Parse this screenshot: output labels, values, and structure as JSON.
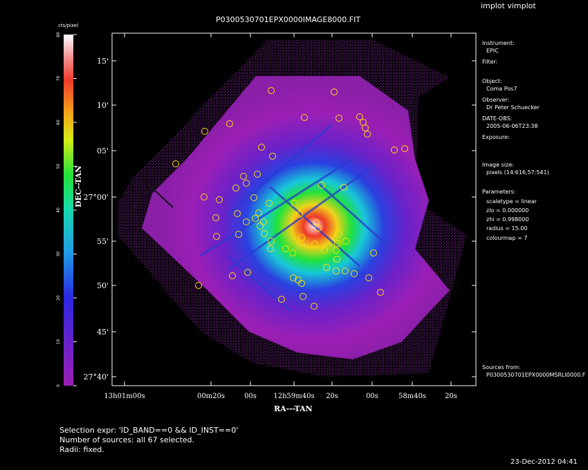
{
  "app_title": "implot vimplot",
  "image": {
    "title": "P0300530701EPX0000IMAGE8000.FIT",
    "xlabel": "RA---TAN",
    "ylabel": "DEC--TAN",
    "dec_ticks": [
      "15'",
      "10'",
      "05'",
      "27°00'",
      "55'",
      "50'",
      "45'",
      "27°40'"
    ],
    "ra_ticks": [
      "13h01m00s",
      "00m20s",
      "00s",
      "12h59m40s",
      "20s",
      "00s",
      "58m40s",
      "20s"
    ],
    "colormap_accent": "#9b1fb5"
  },
  "colorbar": {
    "title": "cts/pixel",
    "ticks": [
      "0",
      "10",
      "20",
      "30",
      "40",
      "50",
      "60",
      "70",
      "80"
    ]
  },
  "info": {
    "instrument_label": "Instrument:",
    "instrument_value": "EPIC",
    "filter_label": "Filter:",
    "object_label": "Object:",
    "object_value": "Coma Pos7",
    "observer_label": "Observer:",
    "observer_value": "Dr Peter Schuecker",
    "date_label": "DATE-OBS:",
    "date_value": "2005-06-06T23:38",
    "exposure_label": "Exposure:",
    "imagesize_label": "Image size:",
    "imagesize_value": "pixels (14:616,57:541)",
    "params_label": "Parameters:",
    "param_scaletype": "scaletype = linear",
    "param_zlo": "zlo = 0.000000",
    "param_zhi": "zhi = 0.998000",
    "param_radius": "radius = 15.00",
    "param_colourmap": "colourmap = 7",
    "sources_label": "Sources from:",
    "sources_value": "P0300530701EPX0000MSRLI0000.F"
  },
  "selection": {
    "expr": "Selection expr: 'ID_BAND==0 && ID_INST==0'",
    "count": "Number of sources: all 67 selected.",
    "radii": "Radii: fixed."
  },
  "timestamp": "23-Dec-2012 04:41"
}
